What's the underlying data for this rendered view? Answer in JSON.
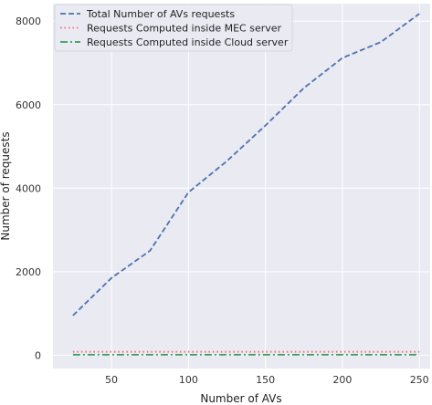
{
  "chart_data": {
    "type": "line",
    "title": "",
    "xlabel": "Number of AVs",
    "ylabel": "Number of requests",
    "xlim": [
      12,
      257
    ],
    "ylim": [
      -320,
      8420
    ],
    "x_ticks": [
      50,
      100,
      150,
      200,
      250
    ],
    "y_ticks": [
      0,
      2000,
      4000,
      6000,
      8000
    ],
    "grid": true,
    "legend_position": "top-left",
    "x": [
      25,
      50,
      75,
      100,
      125,
      150,
      175,
      200,
      225,
      250
    ],
    "series": [
      {
        "name": "Total Number of AVs requests",
        "values": [
          950,
          1850,
          2500,
          3900,
          4650,
          5500,
          6400,
          7120,
          7500,
          8180
        ],
        "color": "#4c72b0",
        "style": "dashed"
      },
      {
        "name": "Requests Computed inside MEC server",
        "values": [
          80,
          80,
          80,
          80,
          80,
          80,
          80,
          80,
          80,
          80
        ],
        "color": "#e8706a",
        "style": "dotted"
      },
      {
        "name": "Requests Computed inside Cloud server",
        "values": [
          10,
          10,
          10,
          10,
          10,
          10,
          10,
          10,
          10,
          10
        ],
        "color": "#3a9b5b",
        "style": "dashdot"
      }
    ]
  }
}
